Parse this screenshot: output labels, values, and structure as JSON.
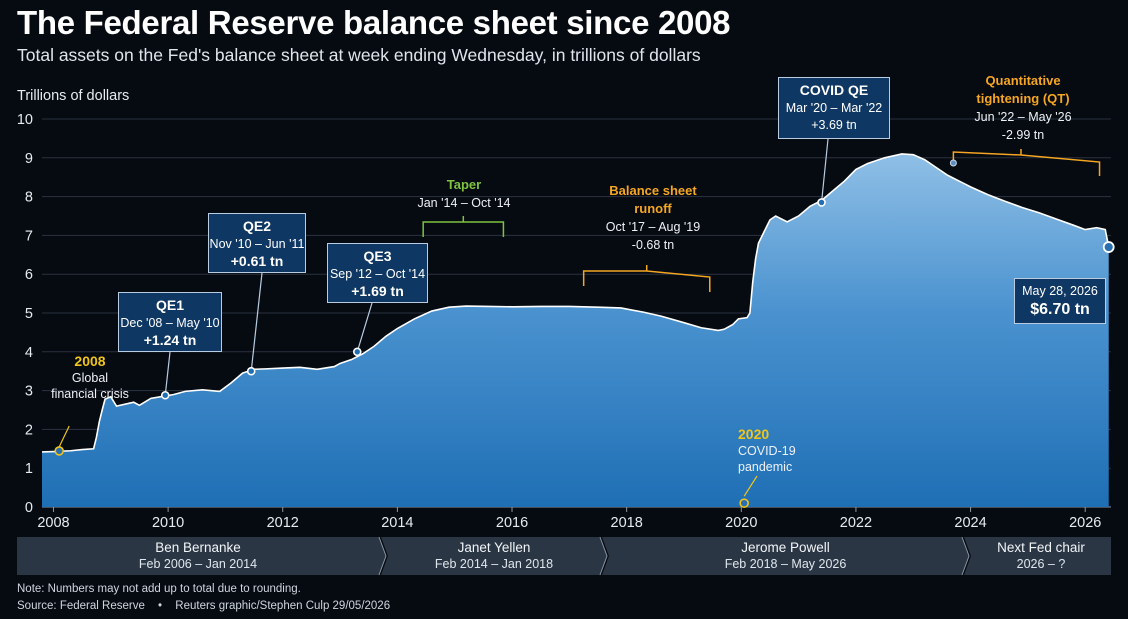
{
  "title": "The Federal Reserve balance sheet since 2008",
  "subtitle": "Total assets on the Fed's balance sheet at week ending Wednesday, in trillions of dollars",
  "colors": {
    "area_top": "#8fbfe6",
    "area_bottom": "#1f6fb5",
    "box_fill": "#0f3763",
    "orange": "#f5a623",
    "green": "#7dc340",
    "yellow": "#f0c419",
    "background": "#060a11"
  },
  "chart_data": {
    "type": "area",
    "ylabel": "Trillions of dollars",
    "ylim": [
      0,
      10
    ],
    "xlim": [
      2007.8,
      2026.45
    ],
    "yticks": [
      "0",
      "1",
      "2",
      "3",
      "4",
      "5",
      "6",
      "7",
      "8",
      "9",
      "10"
    ],
    "xticks": [
      "2008",
      "2010",
      "2012",
      "2014",
      "2016",
      "2018",
      "2020",
      "2022",
      "2024",
      "2026"
    ],
    "grid": "horizontal",
    "series": [
      {
        "x": [
          2007.8,
          2008.0,
          2008.3,
          2008.5,
          2008.7,
          2008.75,
          2008.8,
          2008.85,
          2008.9,
          2009.0,
          2009.1,
          2009.25,
          2009.4,
          2009.5,
          2009.7,
          2009.9,
          2010.1,
          2010.3,
          2010.6,
          2010.9,
          2011.1,
          2011.3,
          2011.5,
          2011.7,
          2012.0,
          2012.3,
          2012.6,
          2012.9,
          2013.0,
          2013.2,
          2013.4,
          2013.6,
          2013.8,
          2014.0,
          2014.3,
          2014.6,
          2014.9,
          2015.2,
          2015.6,
          2016.0,
          2016.5,
          2017.0,
          2017.5,
          2017.9,
          2018.3,
          2018.6,
          2019.0,
          2019.3,
          2019.6,
          2019.7,
          2019.85,
          2019.95,
          2020.1,
          2020.15,
          2020.2,
          2020.25,
          2020.3,
          2020.4,
          2020.5,
          2020.6,
          2020.8,
          2021.0,
          2021.2,
          2021.4,
          2021.6,
          2021.8,
          2022.0,
          2022.2,
          2022.5,
          2022.8,
          2023.0,
          2023.2,
          2023.4,
          2023.6,
          2023.8,
          2024.0,
          2024.3,
          2024.6,
          2024.9,
          2025.2,
          2025.5,
          2025.8,
          2026.0,
          2026.2,
          2026.35,
          2026.41
        ],
        "y": [
          1.42,
          1.43,
          1.45,
          1.48,
          1.5,
          1.8,
          2.2,
          2.5,
          2.78,
          2.84,
          2.6,
          2.65,
          2.7,
          2.62,
          2.8,
          2.85,
          2.9,
          2.98,
          3.02,
          2.98,
          3.2,
          3.45,
          3.55,
          3.56,
          3.58,
          3.6,
          3.55,
          3.62,
          3.7,
          3.8,
          3.95,
          4.15,
          4.4,
          4.6,
          4.85,
          5.05,
          5.15,
          5.18,
          5.17,
          5.16,
          5.17,
          5.17,
          5.15,
          5.13,
          5.02,
          4.92,
          4.75,
          4.62,
          4.55,
          4.58,
          4.7,
          4.85,
          4.88,
          5.0,
          5.8,
          6.4,
          6.8,
          7.1,
          7.4,
          7.5,
          7.35,
          7.5,
          7.75,
          7.9,
          8.15,
          8.4,
          8.7,
          8.85,
          9.0,
          9.1,
          9.08,
          8.95,
          8.75,
          8.55,
          8.4,
          8.25,
          8.05,
          7.88,
          7.72,
          7.58,
          7.42,
          7.26,
          7.15,
          7.2,
          7.15,
          6.7
        ]
      }
    ],
    "last_point": {
      "label": "May 28, 2026",
      "value": "$6.70 tn",
      "x": 2026.41,
      "y": 6.7
    },
    "annotations": [
      {
        "id": "gfc",
        "title": "2008",
        "text": "Global financial crisis",
        "x": 2008.1,
        "y": 1.42
      },
      {
        "id": "qe1",
        "title": "QE1",
        "dates": "Dec '08 – May '10",
        "value": "+1.24 tn",
        "x": 2009.95,
        "y": 2.88
      },
      {
        "id": "qe2",
        "title": "QE2",
        "dates": "Nov '10 – Jun '11",
        "value": "+0.61 tn",
        "x": 2011.45,
        "y": 3.5
      },
      {
        "id": "qe3",
        "title": "QE3",
        "dates": "Sep '12 – Oct '14",
        "value": "+1.69 tn",
        "x": 2013.3,
        "y": 4.0
      },
      {
        "id": "taper",
        "title": "Taper",
        "dates": "Jan '14 – Oct '14",
        "x0": 2014.45,
        "x1": 2015.85,
        "y": 7.4
      },
      {
        "id": "runoff",
        "title": "Balance sheet runoff",
        "dates": "Oct '17 – Aug '19",
        "value": "-0.68 tn",
        "x0": 2017.25,
        "x1": 2019.45,
        "y": 6.0
      },
      {
        "id": "covid",
        "title": "2020",
        "text": "COVID-19 pandemic",
        "x": 2020.05,
        "y": 0.15
      },
      {
        "id": "covidqe",
        "title": "COVID QE",
        "dates": "Mar '20 – Mar '22",
        "value": "+3.69 tn",
        "x": 2021.4,
        "y": 7.85
      },
      {
        "id": "qt",
        "title": "Quantitative tightening (QT)",
        "dates": "Jun '22 – May '26",
        "value": "-2.99 tn",
        "x0": 2023.7,
        "x1": 2026.25,
        "y": 9.0
      }
    ]
  },
  "chairs": [
    {
      "name": "Ben Bernanke",
      "term": "Feb 2006 – Jan 2014"
    },
    {
      "name": "Janet Yellen",
      "term": "Feb 2014 – Jan 2018"
    },
    {
      "name": "Jerome Powell",
      "term": "Feb 2018 – May 2026"
    },
    {
      "name": "Next Fed chair",
      "term": "2026 – ?"
    }
  ],
  "note": "Note: Numbers may not add up to total due to rounding.",
  "source": "Source: Federal Reserve",
  "bullet": "•",
  "credit": "Reuters graphic/Stephen Culp  29/05/2026"
}
